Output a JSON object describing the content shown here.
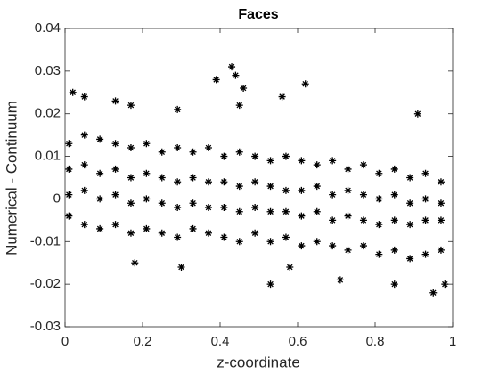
{
  "chart_data": {
    "type": "scatter",
    "title": "Faces",
    "xlabel": "z-coordinate",
    "ylabel": "Numerical - Continuum",
    "marker_color": "#000000",
    "x": [
      0.01,
      0.01,
      0.01,
      0.01,
      0.05,
      0.05,
      0.05,
      0.05,
      0.09,
      0.09,
      0.09,
      0.09,
      0.13,
      0.13,
      0.13,
      0.13,
      0.17,
      0.17,
      0.17,
      0.17,
      0.21,
      0.21,
      0.21,
      0.21,
      0.25,
      0.25,
      0.25,
      0.25,
      0.29,
      0.29,
      0.29,
      0.29,
      0.33,
      0.33,
      0.33,
      0.33,
      0.37,
      0.37,
      0.37,
      0.37,
      0.41,
      0.41,
      0.41,
      0.41,
      0.45,
      0.45,
      0.45,
      0.45,
      0.49,
      0.49,
      0.49,
      0.49,
      0.53,
      0.53,
      0.53,
      0.53,
      0.57,
      0.57,
      0.57,
      0.57,
      0.61,
      0.61,
      0.61,
      0.61,
      0.65,
      0.65,
      0.65,
      0.65,
      0.69,
      0.69,
      0.69,
      0.69,
      0.73,
      0.73,
      0.73,
      0.73,
      0.77,
      0.77,
      0.77,
      0.77,
      0.81,
      0.81,
      0.81,
      0.81,
      0.85,
      0.85,
      0.85,
      0.85,
      0.89,
      0.89,
      0.89,
      0.89,
      0.93,
      0.93,
      0.93,
      0.93,
      0.97,
      0.97,
      0.97,
      0.97,
      0.02,
      0.05,
      0.13,
      0.17,
      0.29,
      0.39,
      0.43,
      0.44,
      0.46,
      0.45,
      0.62,
      0.56,
      0.91,
      0.18,
      0.3,
      0.53,
      0.58,
      0.71,
      0.95,
      0.98,
      0.85
    ],
    "y": [
      0.013,
      0.007,
      0.001,
      -0.004,
      0.015,
      0.008,
      0.002,
      -0.006,
      0.014,
      0.006,
      0.0,
      -0.007,
      0.013,
      0.007,
      0.001,
      -0.006,
      0.012,
      0.005,
      -0.001,
      -0.008,
      0.013,
      0.006,
      0.0,
      -0.007,
      0.011,
      0.005,
      -0.001,
      -0.008,
      0.012,
      0.004,
      -0.002,
      -0.009,
      0.011,
      0.005,
      -0.001,
      -0.007,
      0.012,
      0.004,
      -0.002,
      -0.008,
      0.01,
      0.004,
      -0.002,
      -0.009,
      0.011,
      0.003,
      -0.003,
      -0.01,
      0.01,
      0.004,
      -0.002,
      -0.008,
      0.009,
      0.003,
      -0.003,
      -0.01,
      0.01,
      0.002,
      -0.003,
      -0.009,
      0.009,
      0.002,
      -0.004,
      -0.011,
      0.008,
      0.003,
      -0.003,
      -0.01,
      0.009,
      0.001,
      -0.005,
      -0.011,
      0.007,
      0.002,
      -0.004,
      -0.012,
      0.008,
      0.001,
      -0.005,
      -0.011,
      0.006,
      0.0,
      -0.006,
      -0.013,
      0.007,
      0.001,
      -0.005,
      -0.012,
      0.005,
      -0.001,
      -0.006,
      -0.014,
      0.006,
      0.0,
      -0.005,
      -0.013,
      0.004,
      -0.001,
      -0.005,
      -0.012,
      0.025,
      0.024,
      0.023,
      0.022,
      0.021,
      0.028,
      0.031,
      0.029,
      0.026,
      0.022,
      0.027,
      0.024,
      0.02,
      -0.015,
      -0.016,
      -0.02,
      -0.016,
      -0.019,
      -0.022,
      -0.02,
      -0.02
    ],
    "xlim": [
      0,
      1
    ],
    "ylim": [
      -0.03,
      0.04
    ],
    "xticks": [
      0,
      0.2,
      0.4,
      0.6,
      0.8,
      1
    ],
    "yticks": [
      -0.03,
      -0.02,
      -0.01,
      0,
      0.01,
      0.02,
      0.03,
      0.04
    ]
  }
}
